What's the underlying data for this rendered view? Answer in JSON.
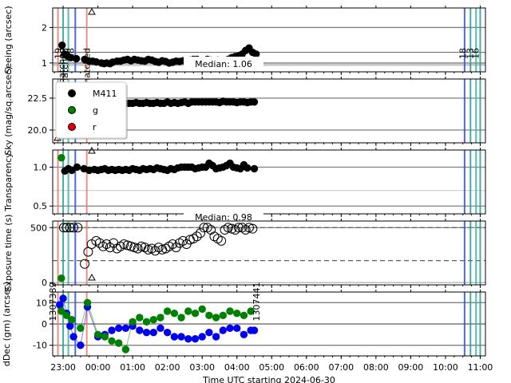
{
  "chart_data": {
    "type": "scatter",
    "xlabel": "Time UTC starting 2024-06-30",
    "x_tick_labels": [
      "23:00",
      "00:00",
      "01:00",
      "02:00",
      "03:00",
      "04:00",
      "05:00",
      "06:00",
      "07:00",
      "08:00",
      "09:00",
      "10:00",
      "11:00"
    ],
    "x_range_hours": [
      22.7,
      35.15
    ],
    "panels": [
      {
        "id": "seeing",
        "ylabel": "Seeing (arcsec)",
        "ylim": [
          0.75,
          2.55
        ],
        "yticks": [
          1,
          2
        ],
        "annotation": "Median: 1.06",
        "series": [
          {
            "name": "M411",
            "color": "#000000",
            "x": [
              22.97,
              23.04,
              23.12,
              23.22,
              23.38,
              23.62,
              23.75,
              23.85,
              23.95,
              24.1,
              24.18,
              24.25,
              24.35,
              24.42,
              24.55,
              24.65,
              24.75,
              24.85,
              24.95,
              25.05,
              25.15,
              25.25,
              25.35,
              25.45,
              25.55,
              25.65,
              25.75,
              25.85,
              25.95,
              26.05,
              26.15,
              26.25,
              26.35,
              26.45,
              26.55,
              26.65,
              26.75,
              26.85,
              26.95,
              27.05,
              27.15,
              27.25,
              27.35,
              27.45,
              27.55,
              27.65,
              27.75,
              27.85,
              27.95,
              28.05,
              28.15,
              28.25,
              28.35,
              28.45,
              28.55
            ],
            "y": [
              1.5,
              1.25,
              1.2,
              1.15,
              1.12,
              1.1,
              1.05,
              1.05,
              1.03,
              1.0,
              0.98,
              1.0,
              0.98,
              1.02,
              1.05,
              1.05,
              1.08,
              1.1,
              1.06,
              1.1,
              1.08,
              1.06,
              1.05,
              1.1,
              1.08,
              1.04,
              1.02,
              1.06,
              1.04,
              1.0,
              1.02,
              1.05,
              1.04,
              1.06,
              1.05,
              1.08,
              1.1,
              1.1,
              1.05,
              1.07,
              1.1,
              1.08,
              1.06,
              1.08,
              1.05,
              1.07,
              1.1,
              1.15,
              1.18,
              1.2,
              1.25,
              1.35,
              1.42,
              1.3,
              1.25
            ]
          }
        ]
      },
      {
        "id": "sky",
        "ylabel": "Sky (mag/sq.arcsec)",
        "ylim": [
          19.0,
          24.0
        ],
        "yticks": [
          20.0,
          22.5
        ],
        "legend": {
          "placement": "upper-left",
          "entries": [
            {
              "name": "M411",
              "color": "#000000"
            },
            {
              "name": "g",
              "color": "#008000"
            },
            {
              "name": "r",
              "color": "#e00000"
            }
          ]
        },
        "series": [
          {
            "name": "M411",
            "color": "#000000",
            "x": [
              23.22,
              23.32,
              23.45,
              23.6,
              23.75,
              23.85,
              23.95,
              24.05,
              24.15,
              24.3,
              24.4,
              24.5,
              24.6,
              24.7,
              24.8,
              24.9,
              25.0,
              25.1,
              25.2,
              25.3,
              25.4,
              25.5,
              25.6,
              25.7,
              25.8,
              25.9,
              26.0,
              26.1,
              26.2,
              26.3,
              26.4,
              26.5,
              26.6,
              26.7,
              26.8,
              26.9,
              27.0,
              27.1,
              27.2,
              27.3,
              27.4,
              27.5,
              27.6,
              27.7,
              27.8,
              27.9,
              28.0,
              28.1,
              28.2,
              28.3,
              28.4,
              28.5
            ],
            "y": [
              23.3,
              23.1,
              22.9,
              22.5,
              22.3,
              22.1,
              22.05,
              22.0,
              22.05,
              22.0,
              22.1,
              22.05,
              22.1,
              22.05,
              22.1,
              22.1,
              22.1,
              22.15,
              22.1,
              22.1,
              22.15,
              22.1,
              22.1,
              22.15,
              22.1,
              22.1,
              22.2,
              22.1,
              22.15,
              22.1,
              22.15,
              22.2,
              22.1,
              22.2,
              22.2,
              22.2,
              22.2,
              22.2,
              22.2,
              22.2,
              22.2,
              22.15,
              22.25,
              22.2,
              22.2,
              22.2,
              22.15,
              22.2,
              22.2,
              22.15,
              22.2,
              22.2
            ]
          }
        ]
      },
      {
        "id": "transparency",
        "ylabel": "Transparency",
        "ylim": [
          0.4,
          1.22
        ],
        "yticks": [
          0.5,
          1.0
        ],
        "annotation": "Median: 0.98",
        "series": [
          {
            "name": "g",
            "color": "#008000",
            "x": [
              22.95
            ],
            "y": [
              1.12
            ]
          },
          {
            "name": "M411",
            "color": "#000000",
            "x": [
              23.05,
              23.15,
              23.25,
              23.4,
              23.6,
              23.75,
              23.9,
              24.0,
              24.1,
              24.2,
              24.3,
              24.4,
              24.5,
              24.6,
              24.7,
              24.8,
              24.9,
              25.0,
              25.1,
              25.2,
              25.3,
              25.4,
              25.5,
              25.6,
              25.7,
              25.8,
              25.9,
              26.0,
              26.1,
              26.2,
              26.3,
              26.4,
              26.5,
              26.6,
              26.7,
              26.8,
              26.9,
              27.0,
              27.1,
              27.2,
              27.3,
              27.4,
              27.5,
              27.6,
              27.7,
              27.8,
              27.9,
              28.0,
              28.1,
              28.2,
              28.3,
              28.5
            ],
            "y": [
              0.95,
              0.98,
              0.96,
              1.0,
              0.98,
              0.96,
              0.97,
              0.96,
              0.97,
              0.98,
              0.96,
              0.97,
              0.96,
              0.97,
              0.96,
              0.97,
              0.96,
              0.98,
              0.97,
              0.96,
              0.98,
              0.97,
              0.98,
              0.97,
              0.99,
              0.98,
              0.97,
              0.96,
              0.98,
              0.97,
              0.99,
              1.0,
              1.0,
              1.0,
              1.0,
              0.98,
              0.99,
              1.0,
              1.0,
              1.05,
              1.02,
              0.98,
              0.99,
              1.0,
              1.02,
              1.05,
              1.0,
              0.99,
              0.98,
              1.03,
              0.99,
              0.98
            ]
          }
        ]
      },
      {
        "id": "exposure",
        "ylabel": "Exposure time (s)",
        "ylim": [
          -20,
          560
        ],
        "yticks": [
          0,
          500
        ],
        "series": [
          {
            "name": "g",
            "color": "#008000",
            "x": [
              22.95
            ],
            "y": [
              40
            ]
          },
          {
            "name": "M411",
            "color": "#000000",
            "x": [
              23.02,
              23.1,
              23.2,
              23.3,
              23.42,
              23.62,
              23.72,
              23.82,
              23.95,
              24.05,
              24.15,
              24.25,
              24.35,
              24.45,
              24.55,
              24.65,
              24.75,
              24.85,
              24.95,
              25.05,
              25.15,
              25.25,
              25.35,
              25.45,
              25.55,
              25.65,
              25.75,
              25.85,
              25.95,
              26.05,
              26.15,
              26.25,
              26.35,
              26.45,
              26.55,
              26.65,
              26.75,
              26.85,
              26.95,
              27.05,
              27.15,
              27.25,
              27.35,
              27.45,
              27.55,
              27.65,
              27.75,
              27.85,
              27.95,
              28.05,
              28.15,
              28.25,
              28.35,
              28.45
            ],
            "y": [
              500,
              500,
              500,
              500,
              500,
              170,
              280,
              350,
              380,
              360,
              330,
              350,
              320,
              360,
              310,
              330,
              350,
              340,
              330,
              320,
              310,
              330,
              320,
              300,
              310,
              290,
              320,
              300,
              310,
              330,
              350,
              320,
              360,
              380,
              350,
              390,
              400,
              420,
              450,
              500,
              500,
              480,
              420,
              400,
              380,
              480,
              500,
              490,
              480,
              500,
              500,
              480,
              500,
              490
            ]
          }
        ]
      },
      {
        "id": "offsets",
        "ylabel": "dDec (grn) (arcsec)",
        "ylim": [
          -15,
          15
        ],
        "yticks": [
          -10,
          0,
          10
        ],
        "annotations": [
          "1307389",
          "1307441"
        ],
        "series": [
          {
            "name": "dRA",
            "color": "#0000ee",
            "x": [
              22.9,
              23.0,
              23.1,
              23.2,
              23.3,
              23.5,
              23.7,
              24.0,
              24.2,
              24.4,
              24.6,
              24.8,
              25.0,
              25.2,
              25.4,
              25.6,
              25.8,
              26.0,
              26.2,
              26.4,
              26.6,
              26.8,
              27.0,
              27.2,
              27.4,
              27.6,
              27.8,
              28.0,
              28.2,
              28.4,
              28.5
            ],
            "y": [
              9,
              12,
              5,
              -1,
              -6,
              -10,
              8,
              -6,
              -5,
              -3,
              -2,
              -2,
              -1,
              -3,
              -4,
              -4,
              -2,
              -4,
              -6,
              -6,
              -7,
              -7,
              -6,
              -4,
              -6,
              -3,
              -2,
              -2,
              -5,
              -3,
              -3
            ]
          },
          {
            "name": "dDec",
            "color": "#008000",
            "x": [
              22.95,
              23.1,
              23.25,
              23.5,
              23.7,
              24.0,
              24.2,
              24.4,
              24.6,
              24.8,
              25.0,
              25.2,
              25.4,
              25.6,
              25.8,
              26.0,
              26.2,
              26.4,
              26.6,
              26.8,
              27.0,
              27.2,
              27.4,
              27.6,
              27.8,
              28.0,
              28.2,
              28.4
            ],
            "y": [
              6,
              4,
              2,
              -2,
              10,
              -5,
              -6,
              -8,
              -9,
              -12,
              1,
              3,
              1,
              2,
              3,
              6,
              5,
              3,
              6,
              5,
              7,
              4,
              3,
              4,
              6,
              5,
              4,
              6
            ]
          }
        ]
      }
    ],
    "vertical_lines": [
      {
        "x": 22.85,
        "color": "#e08070"
      },
      {
        "x": 23.0,
        "color": "#2a9d8f"
      },
      {
        "x": 23.15,
        "color": "#3cb0a0"
      },
      {
        "x": 23.35,
        "color": "#3050e0"
      },
      {
        "x": 23.68,
        "color": "#e08070"
      },
      {
        "x": 34.55,
        "color": "#3050e0"
      },
      {
        "x": 34.72,
        "color": "#2a9d8f"
      },
      {
        "x": 34.88,
        "color": "#3cb0a0"
      },
      {
        "x": 35.0,
        "color": "#2a9d8f"
      }
    ],
    "vline_labels": [
      {
        "x": 22.85,
        "text": "19",
        "panel": "seeing"
      },
      {
        "x": 22.95,
        "text": "matched",
        "panel": "seeing"
      },
      {
        "x": 23.05,
        "text": "matched",
        "panel": "seeing"
      },
      {
        "x": 23.22,
        "text": "18",
        "panel": "seeing"
      },
      {
        "x": 23.68,
        "text": "matched",
        "panel": "seeing"
      },
      {
        "x": 34.5,
        "text": "18",
        "panel": "seeing"
      },
      {
        "x": 34.7,
        "text": "13",
        "panel": "seeing"
      },
      {
        "x": 34.86,
        "text": "16",
        "panel": "seeing"
      }
    ]
  }
}
